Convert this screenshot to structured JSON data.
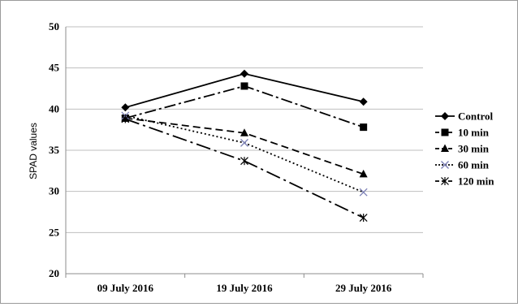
{
  "chart_data": {
    "type": "line",
    "title": "",
    "xlabel": "",
    "ylabel": "SPAD values",
    "ylim": [
      20,
      50
    ],
    "yticks": [
      20,
      25,
      30,
      35,
      40,
      45,
      50
    ],
    "grid": "horizontal",
    "legend_position": "right",
    "categories": [
      "09 July 2016",
      "19 July 2016",
      "29 July 2016"
    ],
    "series": [
      {
        "name": "Control",
        "values": [
          40.2,
          44.3,
          40.9
        ],
        "marker": "diamond",
        "dash": "solid",
        "color": "#000000"
      },
      {
        "name": "10 min",
        "values": [
          38.9,
          42.8,
          37.8
        ],
        "marker": "square",
        "dash": "dash-dot",
        "color": "#000000"
      },
      {
        "name": "30 min",
        "values": [
          38.9,
          37.1,
          32.1
        ],
        "marker": "triangle",
        "dash": "dashed",
        "color": "#000000"
      },
      {
        "name": "60 min",
        "values": [
          39.2,
          35.9,
          29.9
        ],
        "marker": "x",
        "dash": "dotted",
        "color": "#7b7fb5"
      },
      {
        "name": "120 min",
        "values": [
          38.8,
          33.7,
          26.8
        ],
        "marker": "star",
        "dash": "long-dash-dot",
        "color": "#000000"
      }
    ]
  }
}
